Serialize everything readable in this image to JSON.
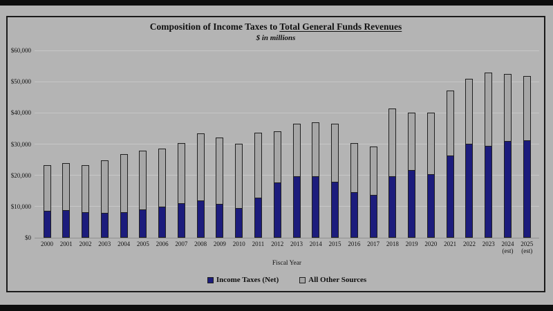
{
  "page": {
    "background_color": "#b3b3b3",
    "letterbox_color": "#0d0d0d",
    "frame_border_color": "#1a1a1a"
  },
  "chart": {
    "title_prefix": "Composition of Income Taxes to ",
    "title_underlined": "Total General Funds Revenues",
    "subtitle": "$ in millions",
    "xlabel": "Fiscal Year",
    "colors": {
      "income_taxes": "#1c1c7c",
      "all_other_sources": "#a6a6a6",
      "gridline": "#c7c7c7",
      "baseline": "#909090"
    }
  },
  "chart_data": {
    "type": "bar",
    "stacked": true,
    "title": "Composition of Income Taxes to Total General Funds Revenues",
    "subtitle": "$ in millions",
    "xlabel": "Fiscal Year",
    "ylabel": "",
    "ylim": [
      0,
      60000
    ],
    "ytick_step": 10000,
    "ytick_labels": [
      "$0",
      "$10,000",
      "$20,000",
      "$30,000",
      "$40,000",
      "$50,000",
      "$60,000"
    ],
    "grid": true,
    "legend_position": "bottom",
    "categories": [
      {
        "year": "2000",
        "note": ""
      },
      {
        "year": "2001",
        "note": ""
      },
      {
        "year": "2002",
        "note": ""
      },
      {
        "year": "2003",
        "note": ""
      },
      {
        "year": "2004",
        "note": ""
      },
      {
        "year": "2005",
        "note": ""
      },
      {
        "year": "2006",
        "note": ""
      },
      {
        "year": "2007",
        "note": ""
      },
      {
        "year": "2008",
        "note": ""
      },
      {
        "year": "2009",
        "note": ""
      },
      {
        "year": "2010",
        "note": ""
      },
      {
        "year": "2011",
        "note": ""
      },
      {
        "year": "2012",
        "note": ""
      },
      {
        "year": "2013",
        "note": ""
      },
      {
        "year": "2014",
        "note": ""
      },
      {
        "year": "2015",
        "note": ""
      },
      {
        "year": "2016",
        "note": ""
      },
      {
        "year": "2017",
        "note": ""
      },
      {
        "year": "2018",
        "note": ""
      },
      {
        "year": "2019",
        "note": ""
      },
      {
        "year": "2020",
        "note": ""
      },
      {
        "year": "2021",
        "note": ""
      },
      {
        "year": "2022",
        "note": ""
      },
      {
        "year": "2023",
        "note": ""
      },
      {
        "year": "2024",
        "note": "(est)"
      },
      {
        "year": "2025",
        "note": "(est)"
      }
    ],
    "series": [
      {
        "name": "Income Taxes (Net)",
        "color": "#1c1c7c",
        "values": [
          8600,
          8900,
          8200,
          7900,
          8100,
          9000,
          10000,
          11000,
          12000,
          10900,
          9600,
          12900,
          17700,
          19700,
          19800,
          18000,
          14700,
          13700,
          19700,
          21700,
          20400,
          26300,
          30200,
          29500,
          31000,
          31200
        ]
      },
      {
        "name": "All Other Sources",
        "color": "#a6a6a6",
        "values": [
          14600,
          15000,
          15100,
          16900,
          18700,
          19000,
          18600,
          19400,
          21500,
          21100,
          20500,
          20700,
          16300,
          16800,
          17100,
          18500,
          15600,
          15600,
          21600,
          18400,
          19600,
          20800,
          20800,
          23500,
          21400,
          20700
        ]
      }
    ]
  }
}
